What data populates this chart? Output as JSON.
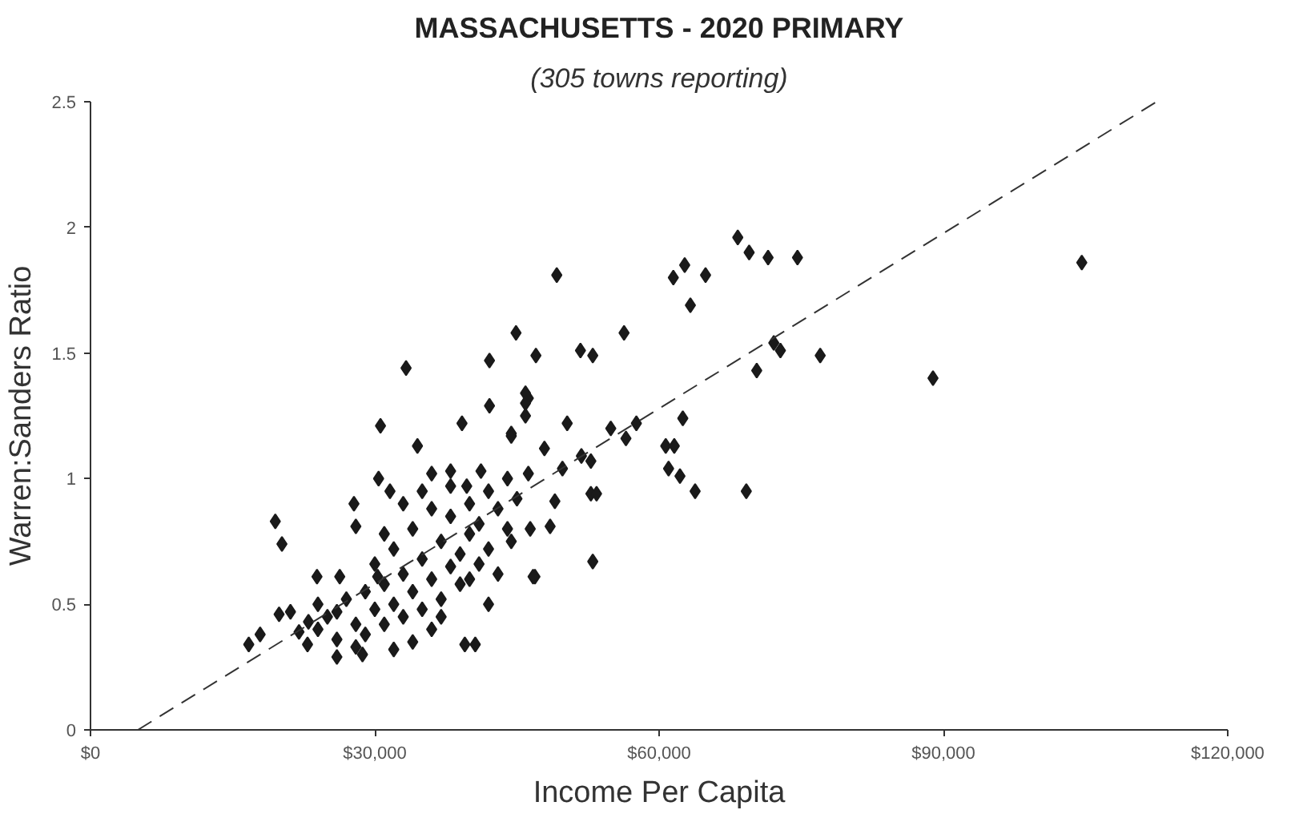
{
  "chart_data": {
    "type": "scatter",
    "title": "MASSACHUSETTS - 2020 PRIMARY",
    "subtitle": "(305 towns reporting)",
    "xlabel": "Income Per Capita",
    "ylabel": "Warren:Sanders Ratio",
    "xlim": [
      0,
      120000
    ],
    "ylim": [
      0,
      2.5
    ],
    "xticks": [
      {
        "value": 0,
        "label": "$0"
      },
      {
        "value": 30000,
        "label": "$30,000"
      },
      {
        "value": 60000,
        "label": "$60,000"
      },
      {
        "value": 90000,
        "label": "$90,000"
      },
      {
        "value": 120000,
        "label": "$120,000"
      }
    ],
    "yticks": [
      0,
      0.5,
      1,
      1.5,
      2,
      2.5
    ],
    "grid": false,
    "series": [
      {
        "marker": "diamond",
        "color": "#1a1a1a",
        "x": [
          68300,
          69500,
          71500,
          74600,
          61500,
          62700,
          64900,
          63300,
          49200,
          56300,
          47000,
          51700,
          53000,
          72100,
          72800,
          77000,
          70300,
          88900,
          104600,
          62500,
          60700,
          61600,
          61000,
          62200,
          63800,
          69200,
          54900,
          56500,
          57600,
          50300,
          47900,
          51800,
          52800,
          49800,
          49000,
          52800,
          53400,
          48500,
          53000,
          46900,
          46400,
          46200,
          46200,
          33300,
          30600,
          34500,
          44900,
          42100,
          42100,
          39200,
          45900,
          45900,
          45900,
          44400,
          19500,
          20200,
          16700,
          17900,
          19900,
          21100,
          23900,
          24000,
          26300,
          27800,
          28000,
          30400,
          31600,
          30300,
          28700,
          26000,
          39500,
          40600,
          38000,
          39700,
          41200,
          44400,
          46700,
          44400,
          22000,
          22900,
          24000,
          25000,
          26000,
          27000,
          28000,
          29000,
          29000,
          30000,
          30000,
          31000,
          31000,
          32000,
          32000,
          33000,
          33000,
          34000,
          34000,
          35000,
          35000,
          36000,
          36000,
          37000,
          37000,
          38000,
          38000,
          39000,
          39000,
          40000,
          40000,
          41000,
          41000,
          42000,
          42000,
          43000,
          44000,
          44000,
          45000,
          43000,
          36000,
          34000,
          32000,
          28000,
          26000,
          23000,
          38000,
          36000,
          35000,
          33000,
          31000,
          40000,
          42000,
          37000
        ],
        "values": [
          1.96,
          1.9,
          1.88,
          1.88,
          1.8,
          1.85,
          1.81,
          1.69,
          1.81,
          1.58,
          1.49,
          1.51,
          1.49,
          1.54,
          1.51,
          1.49,
          1.43,
          1.4,
          1.86,
          1.24,
          1.13,
          1.13,
          1.04,
          1.01,
          0.95,
          0.95,
          1.2,
          1.16,
          1.22,
          1.22,
          1.12,
          1.09,
          1.07,
          1.04,
          0.91,
          0.94,
          0.94,
          0.81,
          0.67,
          0.61,
          0.8,
          1.32,
          1.02,
          1.44,
          1.21,
          1.13,
          1.58,
          1.47,
          1.29,
          1.22,
          1.34,
          1.3,
          1.25,
          1.18,
          0.83,
          0.74,
          0.34,
          0.38,
          0.46,
          0.47,
          0.61,
          0.5,
          0.61,
          0.9,
          0.81,
          1.0,
          0.95,
          0.61,
          0.3,
          0.29,
          0.34,
          0.34,
          1.03,
          0.97,
          1.03,
          1.17,
          0.61,
          0.75,
          0.39,
          0.34,
          0.4,
          0.45,
          0.36,
          0.52,
          0.42,
          0.55,
          0.38,
          0.48,
          0.66,
          0.58,
          0.42,
          0.72,
          0.5,
          0.62,
          0.45,
          0.8,
          0.55,
          0.68,
          0.48,
          0.88,
          0.6,
          0.75,
          0.52,
          0.85,
          0.65,
          0.7,
          0.58,
          0.9,
          0.78,
          0.82,
          0.66,
          0.95,
          0.72,
          0.88,
          1.0,
          0.8,
          0.92,
          0.62,
          0.4,
          0.35,
          0.32,
          0.33,
          0.47,
          0.43,
          0.97,
          1.02,
          0.95,
          0.9,
          0.78,
          0.6,
          0.5,
          0.45
        ]
      },
      {
        "type": "line",
        "line_style": "dashed",
        "marker": "none",
        "color": "#333333",
        "x": [
          5000,
          112500
        ],
        "values": [
          0,
          2.5
        ]
      }
    ]
  }
}
